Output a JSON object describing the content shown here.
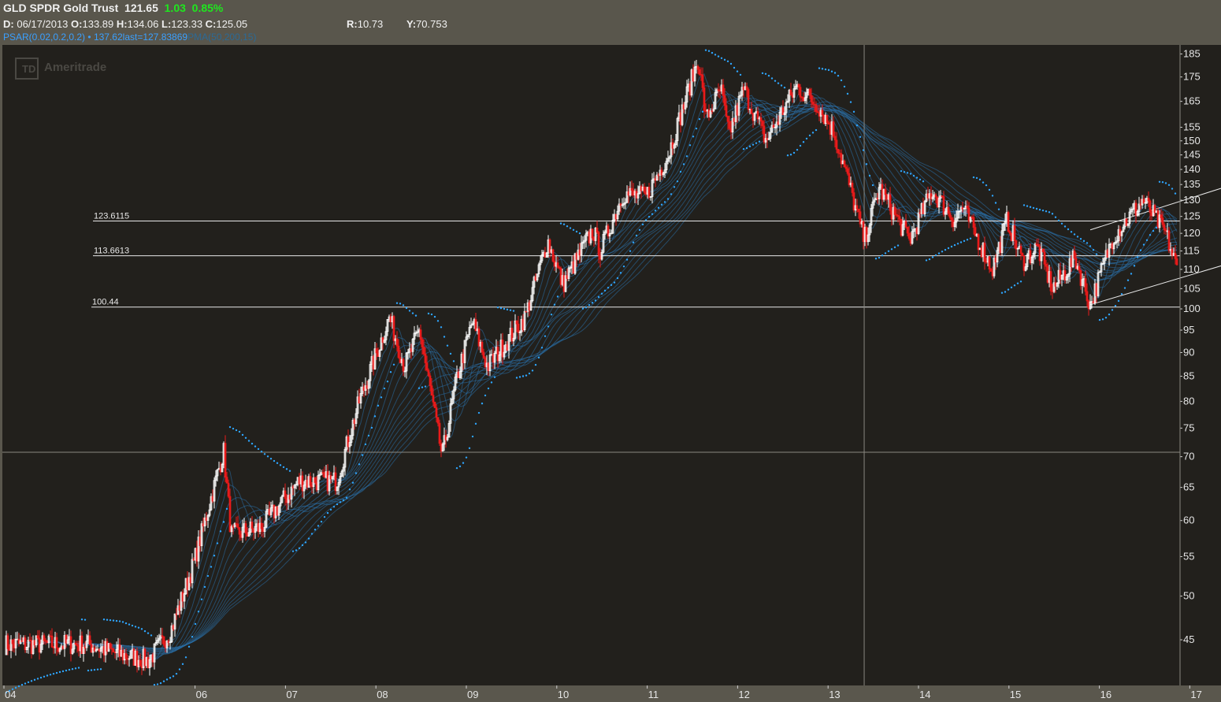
{
  "header": {
    "symbol": "GLD",
    "name": "SPDR Gold Trust",
    "last": "121.65",
    "change": "1.03",
    "change_pct": "0.85%",
    "date_label": "D:",
    "date": "06/17/2013",
    "open_label": "O:",
    "open": "133.89",
    "high_label": "H:",
    "high": "134.06",
    "low_label": "L:",
    "low": "123.33",
    "close_label": "C:",
    "close": "125.05",
    "r_label": "R:",
    "r_value": "10.73",
    "y_label": "Y:",
    "y_value": "70.753",
    "psar_label": "PSAR(0.02,0.2,0.2)",
    "psar_dot": "•",
    "psar_value": "137.62",
    "psar_last": "last=127.83869",
    "pma_label": "PMA(50,200,15)"
  },
  "watermark": "Ameritrade",
  "colors": {
    "background": "#22201c",
    "frame": "#59564c",
    "up_candle": "#ffffff",
    "down_candle": "#e81a1a",
    "psar": "#2ea6ff",
    "ma_ribbon": "#2a6fa8",
    "line": "#e8e8e8"
  },
  "chart_data": {
    "type": "candlestick",
    "yscale": "log",
    "ylim": [
      41,
      188
    ],
    "y_ticks": [
      45,
      50,
      55,
      60,
      65,
      70,
      75,
      80,
      85,
      90,
      95,
      100,
      105,
      110,
      115,
      120,
      125,
      130,
      135,
      140,
      145,
      150,
      155,
      165,
      175,
      185
    ],
    "x_ticks": [
      "04",
      "06",
      "07",
      "08",
      "09",
      "10",
      "11",
      "12",
      "13",
      "14",
      "15",
      "16",
      "17"
    ],
    "crosshair": {
      "y": 70.753,
      "x": "2013-06-17"
    },
    "price_path": [
      [
        "2004-11",
        44.5
      ],
      [
        "2005-03",
        43.5
      ],
      [
        "2005-07",
        42.8
      ],
      [
        "2005-10",
        46
      ],
      [
        "2006-01",
        54
      ],
      [
        "2006-05",
        71
      ],
      [
        "2006-06",
        58
      ],
      [
        "2006-10",
        59
      ],
      [
        "2007-03",
        66
      ],
      [
        "2007-08",
        66
      ],
      [
        "2007-11",
        80
      ],
      [
        "2008-03",
        98
      ],
      [
        "2008-05",
        87
      ],
      [
        "2008-07",
        95
      ],
      [
        "2008-10",
        70
      ],
      [
        "2008-12",
        85
      ],
      [
        "2009-02",
        97
      ],
      [
        "2009-04",
        87
      ],
      [
        "2009-09",
        98
      ],
      [
        "2009-12",
        118
      ],
      [
        "2010-02",
        106
      ],
      [
        "2010-06",
        121
      ],
      [
        "2010-07",
        115
      ],
      [
        "2010-10",
        132
      ],
      [
        "2011-01",
        131
      ],
      [
        "2011-04",
        145
      ],
      [
        "2011-08",
        183
      ],
      [
        "2011-09",
        158
      ],
      [
        "2011-11",
        170
      ],
      [
        "2011-12",
        152
      ],
      [
        "2012-02",
        170
      ],
      [
        "2012-05",
        150
      ],
      [
        "2012-09",
        171
      ],
      [
        "2012-12",
        163
      ],
      [
        "2013-02",
        153
      ],
      [
        "2013-04",
        135
      ],
      [
        "2013-06",
        118
      ],
      [
        "2013-08",
        134
      ],
      [
        "2013-12",
        118
      ],
      [
        "2014-03",
        133
      ],
      [
        "2014-06",
        124
      ],
      [
        "2014-07",
        128
      ],
      [
        "2014-11",
        110
      ],
      [
        "2015-01",
        124
      ],
      [
        "2015-03",
        112
      ],
      [
        "2015-05",
        116
      ],
      [
        "2015-07",
        105
      ],
      [
        "2015-10",
        113
      ],
      [
        "2015-12",
        101
      ],
      [
        "2016-03",
        119
      ],
      [
        "2016-07",
        130
      ],
      [
        "2016-10",
        120
      ],
      [
        "2016-12",
        107
      ],
      [
        "2017-02",
        118
      ],
      [
        "2017-04",
        122
      ],
      [
        "2017-07",
        117
      ],
      [
        "2017-09",
        128
      ],
      [
        "2017-11",
        121
      ]
    ],
    "horizontal_lines": [
      {
        "label": "123.6115",
        "value": 123.6115
      },
      {
        "label": "113.6613",
        "value": 113.6613
      },
      {
        "label": "100.44",
        "value": 100.44
      }
    ],
    "channel_lines": [
      {
        "from": [
          "2015-12",
          101
        ],
        "to": [
          "2017-12",
          115
        ]
      },
      {
        "from": [
          "2015-12",
          121
        ],
        "to": [
          "2017-12",
          139
        ]
      }
    ],
    "series": [
      {
        "name": "PSAR(0.02,0.2,0.2)"
      },
      {
        "name": "PMA(50,200,15)"
      }
    ]
  }
}
